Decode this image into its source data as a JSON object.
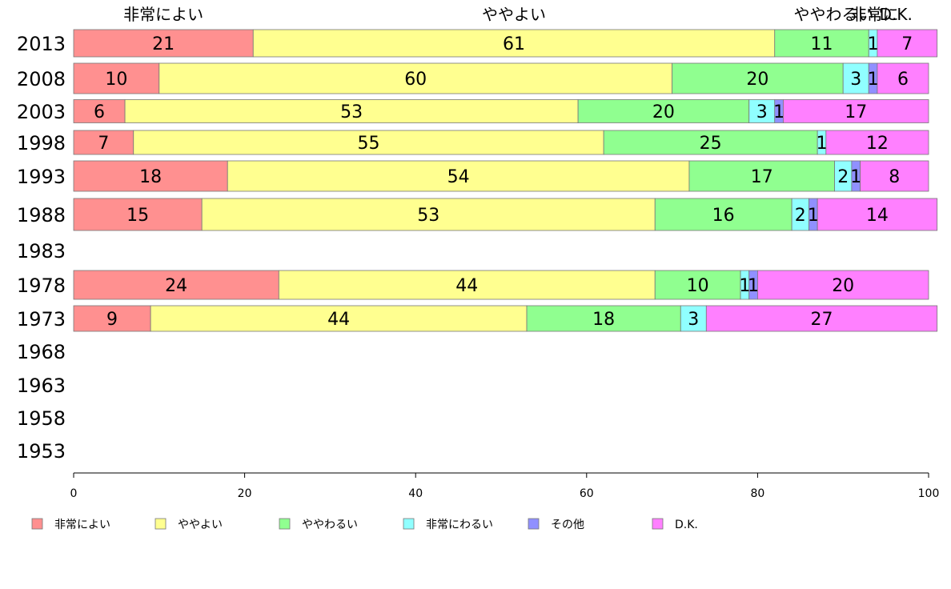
{
  "chart_data": {
    "type": "bar",
    "orientation": "horizontal",
    "stacked": true,
    "xlim": [
      0,
      100
    ],
    "x_ticks": [
      "0",
      "20",
      "40",
      "60",
      "80",
      "100"
    ],
    "years": [
      "2013",
      "2008",
      "2003",
      "1998",
      "1993",
      "1988",
      "1983",
      "1978",
      "1973",
      "1968",
      "1963",
      "1958",
      "1953"
    ],
    "series": [
      {
        "name": "非常によい",
        "color": "#ff9090",
        "values": [
          21,
          10,
          6,
          7,
          18,
          15,
          null,
          24,
          9,
          null,
          null,
          null,
          null
        ]
      },
      {
        "name": "ややよい",
        "color": "#ffff90",
        "values": [
          61,
          60,
          53,
          55,
          54,
          53,
          null,
          44,
          44,
          null,
          null,
          null,
          null
        ]
      },
      {
        "name": "ややわるい",
        "color": "#90ff90",
        "values": [
          11,
          20,
          20,
          25,
          17,
          16,
          null,
          10,
          18,
          null,
          null,
          null,
          null
        ]
      },
      {
        "name": "非常にわるい",
        "color": "#90ffff",
        "values": [
          1,
          3,
          3,
          1,
          2,
          2,
          null,
          1,
          3,
          null,
          null,
          null,
          null
        ]
      },
      {
        "name": "その他",
        "color": "#9090ff",
        "values": [
          0,
          1,
          1,
          0,
          1,
          1,
          null,
          1,
          0,
          null,
          null,
          null,
          null
        ]
      },
      {
        "name": "D.K.",
        "color": "#ff80ff",
        "values": [
          7,
          6,
          17,
          12,
          8,
          14,
          null,
          20,
          27,
          null,
          null,
          null,
          null
        ]
      }
    ],
    "segment_labels": [
      [
        "21",
        "61",
        "11",
        "1",
        "",
        "7"
      ],
      [
        "10",
        "60",
        "20",
        "3",
        "1",
        "6"
      ],
      [
        "6",
        "53",
        "20",
        "3",
        "1",
        "17"
      ],
      [
        "7",
        "55",
        "25",
        "1",
        "",
        "12"
      ],
      [
        "18",
        "54",
        "17",
        "2",
        "1",
        "8"
      ],
      [
        "15",
        "53",
        "16",
        "2",
        "1",
        "14"
      ],
      [],
      [
        "24",
        "44",
        "10",
        "1",
        "1",
        "20"
      ],
      [
        "9",
        "44",
        "18",
        "3",
        "",
        "27"
      ],
      [],
      [],
      [],
      []
    ],
    "top_labels": [
      "非常によい",
      "ややよい",
      "ややわるい",
      "非常に",
      "D.K."
    ],
    "legend": [
      "非常によい",
      "ややよい",
      "ややわるい",
      "非常にわるい",
      "その他",
      "D.K."
    ],
    "legend_position": "bottom",
    "grid": false
  }
}
